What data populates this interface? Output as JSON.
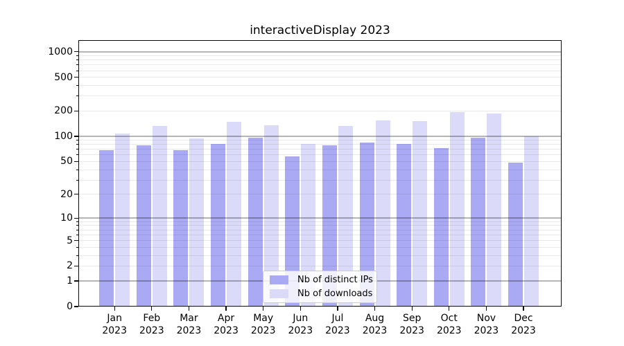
{
  "title": "interactiveDisplay 2023",
  "year_label": "2023",
  "months": [
    "Jan",
    "Feb",
    "Mar",
    "Apr",
    "May",
    "Jun",
    "Jul",
    "Aug",
    "Sep",
    "Oct",
    "Nov",
    "Dec"
  ],
  "legend": {
    "items": [
      {
        "label": "Nb of distinct IPs",
        "color": "#a9a9f4"
      },
      {
        "label": "Nb of downloads",
        "color": "#dbdbf9"
      }
    ]
  },
  "y_axis": {
    "tick_values": [
      1000,
      500,
      200,
      100,
      50,
      20,
      10,
      5,
      2,
      1,
      0
    ],
    "tick_labels": [
      "1000",
      "500",
      "200",
      "100",
      "50",
      "20",
      "10",
      "5",
      "2",
      "1",
      "0"
    ],
    "decade_gridlines": [
      1,
      10,
      100,
      1000
    ],
    "light_gridlines": [
      2,
      3,
      4,
      5,
      6,
      7,
      8,
      9,
      20,
      30,
      40,
      50,
      60,
      70,
      80,
      90,
      200,
      300,
      400,
      500,
      600,
      700,
      800,
      900
    ]
  },
  "chart_data": {
    "type": "bar",
    "title": "interactiveDisplay 2023",
    "categories": [
      "Jan 2023",
      "Feb 2023",
      "Mar 2023",
      "Apr 2023",
      "May 2023",
      "Jun 2023",
      "Jul 2023",
      "Aug 2023",
      "Sep 2023",
      "Oct 2023",
      "Nov 2023",
      "Dec 2023"
    ],
    "series": [
      {
        "name": "Nb of distinct IPs",
        "color": "#a9a9f4",
        "values": [
          69,
          78,
          68,
          81,
          97,
          58,
          78,
          84,
          81,
          72,
          97,
          49
        ]
      },
      {
        "name": "Nb of downloads",
        "color": "#dbdbf9",
        "values": [
          107,
          133,
          94,
          148,
          136,
          82,
          133,
          155,
          152,
          193,
          188,
          100
        ]
      }
    ],
    "yscale": "log1p",
    "ylim": [
      0,
      1370
    ],
    "yticks": [
      0,
      1,
      2,
      5,
      10,
      20,
      50,
      100,
      200,
      500,
      1000
    ],
    "grid": true,
    "legend_position": "lower center"
  }
}
